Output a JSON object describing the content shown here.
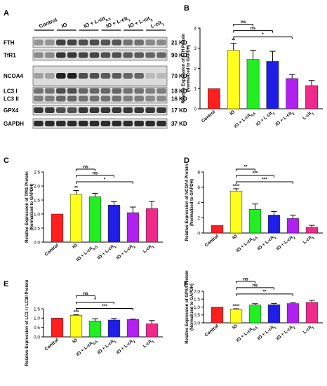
{
  "colors": {
    "control": "#ff1f1f",
    "io": "#ffff1e",
    "io_lcit05": "#22ee22",
    "io_lcit1": "#1e1ee8",
    "io_lcit2": "#b020f0",
    "lcit1": "#ee2a8a"
  },
  "blot": {
    "letter": "A",
    "groups": [
      "Control",
      "IO",
      "IO + L-cit0.5",
      "IO + L-cit1",
      "IO + L-cit2",
      "L-cit1"
    ],
    "bands": [
      {
        "name": "FTH",
        "kd": "21 KD",
        "intensity": [
          0.45,
          0.8,
          0.75,
          0.72,
          0.6,
          0.5
        ]
      },
      {
        "name": "TfR1",
        "kd": "90 KD",
        "intensity": [
          0.5,
          0.85,
          0.8,
          0.75,
          0.7,
          0.65
        ]
      },
      {
        "name": "NCOA4",
        "kd": "70 KD",
        "intensity": [
          0.4,
          0.95,
          0.75,
          0.7,
          0.65,
          0.3
        ]
      },
      {
        "name": "LC3 I",
        "kd": "18 KD",
        "intensity": [
          0.6,
          0.75,
          0.65,
          0.65,
          0.6,
          0.55
        ]
      },
      {
        "name": "LC3 II",
        "kd": "16 KD",
        "intensity": [
          0.55,
          0.65,
          0.6,
          0.6,
          0.55,
          0.5
        ]
      },
      {
        "name": "GPX4",
        "kd": "17 KD",
        "intensity": [
          0.85,
          0.75,
          0.85,
          0.85,
          0.85,
          0.85
        ]
      },
      {
        "name": "GAPDH",
        "kd": "37 KD",
        "intensity": [
          0.9,
          0.9,
          0.9,
          0.9,
          0.9,
          0.9
        ]
      }
    ]
  },
  "chart_data": [
    {
      "panel": "B",
      "type": "bar",
      "categories": [
        "Control",
        "IO",
        "IO + L-cit0.5",
        "IO + L-cit1",
        "IO + L-cit2",
        "L-cit1"
      ],
      "values": [
        1.0,
        2.9,
        2.45,
        2.35,
        1.5,
        1.15
      ],
      "errors": [
        0.0,
        0.35,
        0.45,
        0.5,
        0.2,
        0.25
      ],
      "ylabel": "Relative Expression of FTH Protein (Normalized to GAPDH)",
      "ylim": [
        0,
        4
      ],
      "yticks": [
        "0",
        "1",
        "2",
        "3",
        "4"
      ],
      "stars": [
        "",
        "**",
        "",
        "",
        "",
        ""
      ],
      "brackets": [
        {
          "from": 1,
          "to": 2,
          "label": "ns"
        },
        {
          "from": 1,
          "to": 3,
          "label": "ns"
        },
        {
          "from": 1,
          "to": 4,
          "label": "*"
        }
      ]
    },
    {
      "panel": "C",
      "type": "bar",
      "categories": [
        "Control",
        "IO",
        "IO + L-cit0.5",
        "IO + L-cit1",
        "IO + L-cit2",
        "L-cit1"
      ],
      "values": [
        1.0,
        1.7,
        1.62,
        1.32,
        1.05,
        1.2
      ],
      "errors": [
        0.0,
        0.14,
        0.12,
        0.12,
        0.2,
        0.25
      ],
      "ylabel": "Relative Expression of TfR1 Protein (Normalized to GAPDH)",
      "ylim": [
        0,
        2.5
      ],
      "yticks": [
        "0.0",
        "0.5",
        "1.0",
        "1.5",
        "2.0",
        "2.5"
      ],
      "stars": [
        "",
        "**",
        "",
        "",
        "",
        ""
      ],
      "brackets": [
        {
          "from": 1,
          "to": 2,
          "label": "ns"
        },
        {
          "from": 1,
          "to": 3,
          "label": "ns"
        },
        {
          "from": 1,
          "to": 4,
          "label": "*"
        }
      ]
    },
    {
      "panel": "D",
      "type": "bar",
      "categories": [
        "Control",
        "IO",
        "IO + L-cit0.5",
        "IO + L-cit1",
        "IO + L-cit2",
        "L-cit1"
      ],
      "values": [
        1.0,
        5.5,
        3.1,
        2.35,
        1.9,
        0.75
      ],
      "errors": [
        0.0,
        0.3,
        0.7,
        0.45,
        0.45,
        0.25
      ],
      "ylabel": "Relative Expression of NCOA4 Protein (Normalized to GAPDH)",
      "ylim": [
        0,
        8
      ],
      "yticks": [
        "0",
        "2",
        "4",
        "6",
        "8"
      ],
      "stars": [
        "",
        "****",
        "",
        "",
        "",
        ""
      ],
      "brackets": [
        {
          "from": 1,
          "to": 2,
          "label": "**"
        },
        {
          "from": 1,
          "to": 3,
          "label": "***"
        },
        {
          "from": 1,
          "to": 4,
          "label": "***"
        }
      ]
    },
    {
      "panel": "E",
      "type": "bar",
      "categories": [
        "Control",
        "IO",
        "IO + L-cit0.5",
        "IO + L-cit1",
        "IO + L-cit2",
        "L-cit1"
      ],
      "values": [
        1.0,
        1.15,
        0.85,
        0.9,
        0.93,
        0.7
      ],
      "errors": [
        0.0,
        0.03,
        0.12,
        0.08,
        0.02,
        0.17
      ],
      "ylabel": "Relative Expression of LC3 I / LC3II Protein",
      "ylim": [
        0,
        1.5
      ],
      "yticks": [
        "0.0",
        "0.5",
        "1.0",
        "1.5"
      ],
      "stars": [
        "",
        "***",
        "",
        "",
        "",
        ""
      ],
      "brackets": [
        {
          "from": 1,
          "to": 2,
          "label": "ns"
        },
        {
          "from": 1,
          "to": 3,
          "label": "*"
        },
        {
          "from": 1,
          "to": 4,
          "label": "***"
        }
      ]
    },
    {
      "panel": "F",
      "type": "bar",
      "categories": [
        "Control",
        "IO",
        "IO + L-cit0.5",
        "IO + L-cit1",
        "IO + L-cit2",
        "L-cit1"
      ],
      "values": [
        1.0,
        0.87,
        1.13,
        1.15,
        1.22,
        1.3
      ],
      "errors": [
        0.0,
        0.02,
        0.08,
        0.08,
        0.05,
        0.13
      ],
      "ylabel": "Relative Expression of GPX4 Protein (Normalized to GAPDH)",
      "ylim": [
        0,
        2.0
      ],
      "yticks": [
        "0.0",
        "0.5",
        "1.0",
        "1.5",
        "2.0"
      ],
      "stars": [
        "",
        "****",
        "",
        "",
        "",
        ""
      ],
      "brackets": [
        {
          "from": 1,
          "to": 2,
          "label": "ns"
        },
        {
          "from": 1,
          "to": 3,
          "label": "ns"
        },
        {
          "from": 1,
          "to": 4,
          "label": "**"
        }
      ]
    }
  ]
}
